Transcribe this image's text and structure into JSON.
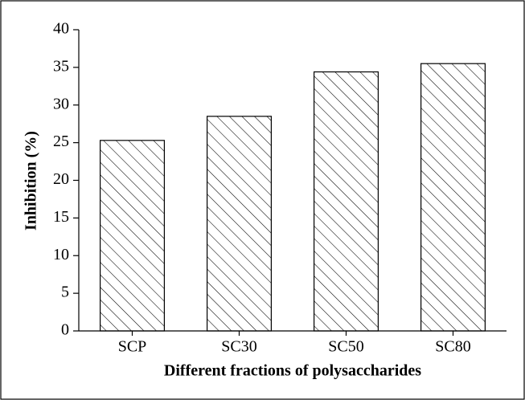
{
  "chart_data": {
    "type": "bar",
    "categories": [
      "SCP",
      "SC30",
      "SC50",
      "SC80"
    ],
    "values": [
      25.3,
      28.5,
      34.4,
      35.5
    ],
    "color": "#000000",
    "xlabel": "Different fractions of polysaccharides",
    "ylabel": "Inhibition (%)",
    "ylim": [
      0,
      40
    ],
    "yticks": [
      0,
      5,
      10,
      15,
      20,
      25,
      30,
      35,
      40
    ],
    "grid": false
  }
}
